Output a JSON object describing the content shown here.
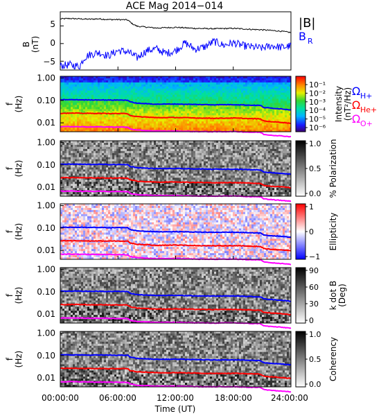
{
  "title": "ACE Mag 2014−014",
  "time_axis": {
    "label": "Time (UT)",
    "ticks": [
      "00:00:00",
      "06:00:00",
      "12:00:00",
      "18:00:00",
      "24:00:00"
    ],
    "range_hours": [
      0,
      24
    ]
  },
  "chart_data": [
    {
      "type": "line",
      "panel": "B-field",
      "ylabel": "B",
      "yunits": "(nT)",
      "ylim": [
        -7.5,
        9
      ],
      "yticks": [
        "−5",
        "0",
        "5"
      ],
      "legend": [
        "|B|",
        "B",
        "R"
      ],
      "legend_colors": [
        "#000000",
        "#0000ff"
      ],
      "series": [
        {
          "name": "|B|",
          "color": "#000000",
          "x": [
            0,
            1,
            2,
            3,
            4,
            5,
            6,
            7,
            7.5,
            8,
            10,
            12,
            14,
            16,
            18,
            20,
            21,
            22,
            23,
            24
          ],
          "values": [
            7.0,
            7.1,
            7.0,
            6.9,
            7.0,
            6.8,
            6.8,
            6.7,
            5.6,
            4.9,
            4.4,
            4.6,
            4.3,
            4.2,
            4.3,
            4.0,
            3.9,
            3.7,
            3.5,
            3.1
          ]
        },
        {
          "name": "B_R",
          "color": "#0000ff",
          "x": [
            0,
            1,
            2,
            2.5,
            3,
            4,
            5,
            6,
            7,
            8,
            9,
            10,
            11,
            12,
            13,
            14,
            15,
            16,
            17,
            18,
            19,
            20,
            21,
            22,
            23,
            24
          ],
          "values": [
            -6.3,
            -6.0,
            -6.5,
            -4.0,
            -3.2,
            -2.5,
            -3.5,
            -2.0,
            -2.3,
            -4.0,
            -2.0,
            -1.5,
            -2.8,
            -2.0,
            0.2,
            -1.6,
            -1.0,
            0.6,
            -0.5,
            0.2,
            -0.6,
            -1.0,
            -1.3,
            -0.6,
            -1.1,
            -0.7
          ]
        }
      ]
    },
    {
      "type": "heatmap",
      "panel": "Intensity",
      "ylabel": "f",
      "yunits": "(Hz)",
      "yscale": "log",
      "ylim": [
        0.004,
        1.2
      ],
      "yticks": [
        "1.00",
        "0.10",
        "0.01"
      ],
      "colorbar": {
        "label": "Intensity",
        "units": "(nT²/Hz)",
        "ticks": [
          "10⁻¹",
          "10⁻²",
          "10⁻³",
          "10⁻⁴",
          "10⁻⁵",
          "10⁻⁶"
        ],
        "colormap": "rainbow"
      },
      "legend": [
        "Ω",
        "H+",
        "Ω",
        "He+",
        "Ω",
        "O+"
      ],
      "legend_colors": [
        "#0000ff",
        "#ff0000",
        "#ff00ff"
      ]
    },
    {
      "type": "heatmap",
      "panel": "Polarization",
      "ylabel": "f",
      "yunits": "(Hz)",
      "yscale": "log",
      "ylim": [
        0.004,
        1.2
      ],
      "yticks": [
        "1.00",
        "0.10",
        "0.01"
      ],
      "colorbar": {
        "label": "% Polarization",
        "ticks": [
          "1.0",
          "0.5",
          "0.0"
        ],
        "colormap": "greyscale"
      }
    },
    {
      "type": "heatmap",
      "panel": "Ellipticity",
      "ylabel": "f",
      "yunits": "(Hz)",
      "yscale": "log",
      "ylim": [
        0.004,
        1.2
      ],
      "yticks": [
        "1.00",
        "0.10",
        "0.01"
      ],
      "colorbar": {
        "label": "Ellipticity",
        "ticks": [
          "1",
          "0",
          "−1"
        ],
        "colormap": "blue-white-red"
      }
    },
    {
      "type": "heatmap",
      "panel": "k dot B",
      "ylabel": "f",
      "yunits": "(Hz)",
      "yscale": "log",
      "ylim": [
        0.004,
        1.2
      ],
      "yticks": [
        "1.00",
        "0.10",
        "0.01"
      ],
      "colorbar": {
        "label": "k dot B",
        "units": "(Deg)",
        "ticks": [
          "90",
          "60",
          "30",
          "0"
        ],
        "colormap": "greyscale"
      }
    },
    {
      "type": "heatmap",
      "panel": "Coherency",
      "ylabel": "f",
      "yunits": "(Hz)",
      "yscale": "log",
      "ylim": [
        0.004,
        1.2
      ],
      "yticks": [
        "1.00",
        "0.10",
        "0.01"
      ],
      "colorbar": {
        "label": "Coherency",
        "ticks": [
          "1.0",
          "0.5",
          "0.0"
        ],
        "colormap": "greyscale"
      }
    }
  ],
  "gyrofrequency_lines": {
    "x": [
      0,
      1,
      2,
      3,
      4,
      5,
      6,
      7,
      7.3,
      8,
      10,
      12,
      14,
      16,
      18,
      20,
      20.8,
      21.2,
      22,
      23,
      24
    ],
    "H+": [
      0.107,
      0.108,
      0.107,
      0.105,
      0.106,
      0.104,
      0.104,
      0.103,
      0.085,
      0.075,
      0.068,
      0.069,
      0.066,
      0.064,
      0.065,
      0.061,
      0.06,
      0.048,
      0.045,
      0.042,
      0.038
    ],
    "He+": [
      0.0268,
      0.027,
      0.0268,
      0.0263,
      0.0265,
      0.026,
      0.026,
      0.0258,
      0.0212,
      0.0188,
      0.017,
      0.0173,
      0.0165,
      0.016,
      0.0163,
      0.0153,
      0.015,
      0.012,
      0.0112,
      0.0105,
      0.0095
    ],
    "O+": [
      0.0067,
      0.0068,
      0.0067,
      0.0066,
      0.0066,
      0.0065,
      0.0065,
      0.0064,
      0.0053,
      0.0047,
      0.0043,
      0.0043,
      0.0041,
      0.004,
      0.0041,
      0.0038,
      0.0038,
      0.003,
      0.0028,
      0.0026,
      0.0024
    ],
    "colors": {
      "H+": "#0000ff",
      "He+": "#ff0000",
      "O+": "#ff00ff"
    }
  }
}
